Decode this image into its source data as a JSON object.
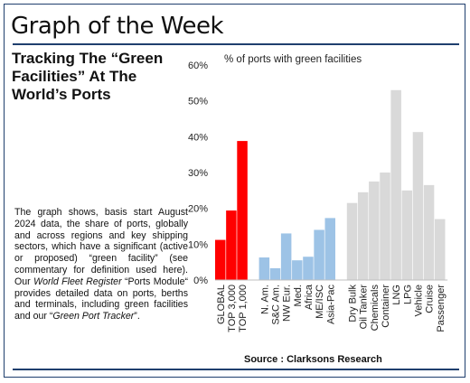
{
  "title": "Graph of the Week",
  "subtitle": "Tracking The “Green Facilities” At The World’s Ports",
  "description": {
    "part1": "The graph shows, basis start August 2024 data, the share of ports, globally and across regions and key shipping sectors, which have a significant (active or proposed) “green facility” (see commentary for definition used here). Our ",
    "italic1": "World Fleet Register",
    "part2": " “Ports Module“ provides detailed data on ports, berths and terminals, including green facilities and our “",
    "italic2": "Green Port Tracker",
    "part3": "”."
  },
  "source": "Source : Clarksons Research",
  "colors": {
    "global": "#ff0000",
    "region": "#9dc3e6",
    "sector": "#d9d9d9",
    "border": "#1f3f6e"
  },
  "chart_data": {
    "type": "bar",
    "ylabel": "% of ports with green facilities",
    "ylim": [
      0,
      60
    ],
    "yticks": [
      0,
      10,
      20,
      30,
      40,
      50,
      60
    ],
    "ytick_labels": [
      "0%",
      "10%",
      "20%",
      "30%",
      "40%",
      "50%",
      "60%"
    ],
    "grid": false,
    "groups": [
      {
        "name": "global",
        "color": "#ff0000",
        "categories": [
          "GLOBAL",
          "TOP 3,000",
          "TOP 1,000"
        ],
        "values": [
          11.2,
          19.4,
          38.8
        ]
      },
      {
        "name": "regions",
        "color": "#9dc3e6",
        "categories": [
          "N. Am.",
          "S&C Am.",
          "NW Eur.",
          "Med.",
          "Africa",
          "ME/ISC",
          "Asia-Pac"
        ],
        "values": [
          6.3,
          3.3,
          13.0,
          5.5,
          6.5,
          14.0,
          17.3
        ]
      },
      {
        "name": "sectors",
        "color": "#d9d9d9",
        "categories": [
          "Dry Bulk",
          "Oil Tanker",
          "Chemicals",
          "Container",
          "LNG",
          "LPG",
          "Vehicle",
          "Cruise",
          "Passenger"
        ],
        "values": [
          21.5,
          24.5,
          27.5,
          30.0,
          53.0,
          25.0,
          41.3,
          26.5,
          17.0
        ]
      }
    ]
  }
}
